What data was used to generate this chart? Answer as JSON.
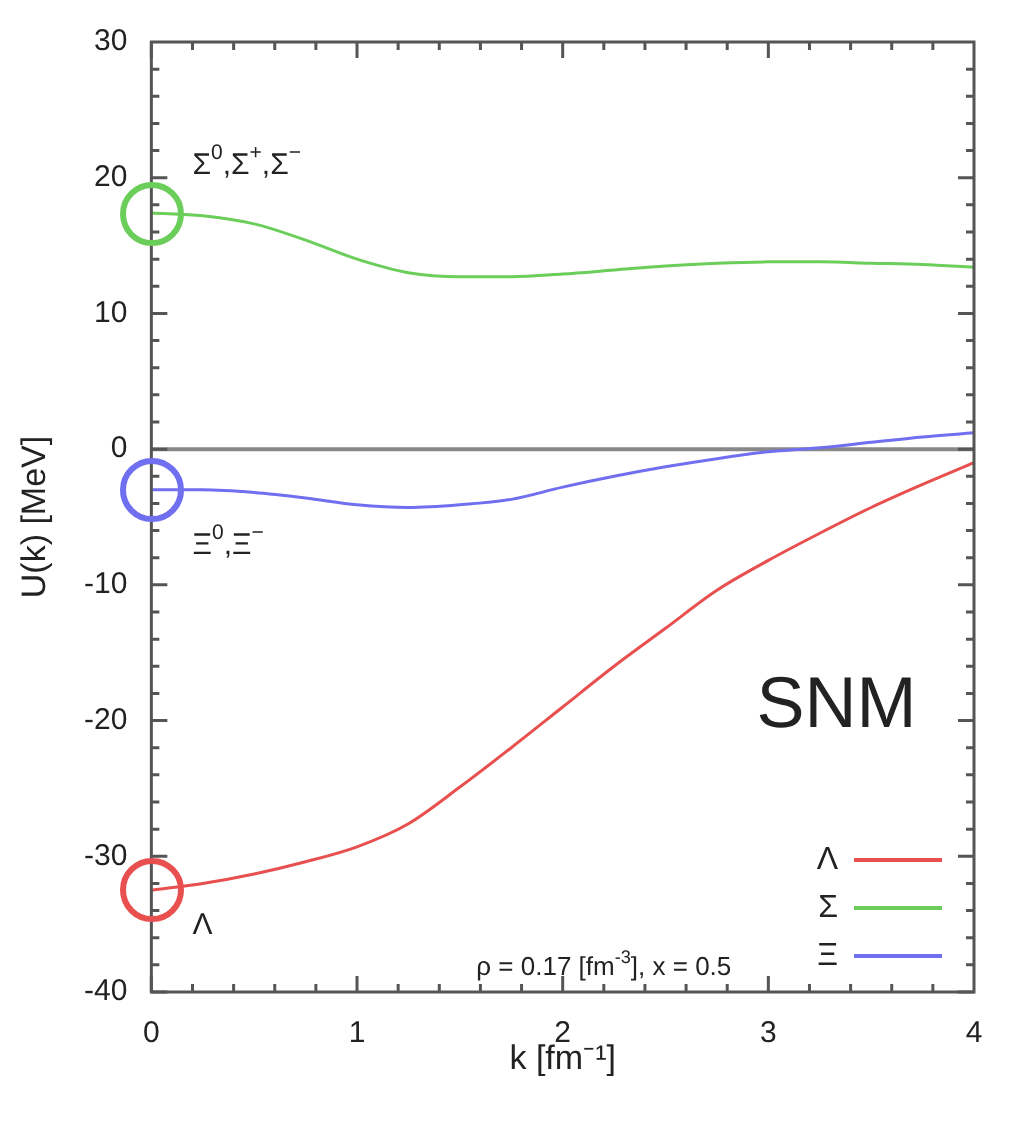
{
  "chart_data": {
    "type": "line",
    "xlabel": "k [fm⁻¹]",
    "ylabel": "U(k) [MeV]",
    "x": [
      0,
      0.25,
      0.5,
      0.75,
      1,
      1.25,
      1.5,
      1.75,
      2,
      2.25,
      2.5,
      2.75,
      3,
      3.25,
      3.5,
      3.75,
      4
    ],
    "series": [
      {
        "name": "Λ",
        "color": "#e8504f",
        "values": [
          -32.5,
          -32,
          -31.3,
          -30.4,
          -29.3,
          -27.6,
          -24.9,
          -22,
          -19,
          -16,
          -13.2,
          -10.4,
          -8.2,
          -6.2,
          -4.3,
          -2.6,
          -1.0
        ]
      },
      {
        "name": "Σ",
        "color": "#6cce5a",
        "values": [
          17.4,
          17.2,
          16.6,
          15.4,
          14.0,
          13.0,
          12.7,
          12.7,
          12.9,
          13.2,
          13.5,
          13.7,
          13.8,
          13.8,
          13.7,
          13.6,
          13.4
        ]
      },
      {
        "name": "Ξ",
        "color": "#6f6ff0",
        "values": [
          -3.0,
          -3.0,
          -3.2,
          -3.6,
          -4.1,
          -4.3,
          -4.1,
          -3.7,
          -2.8,
          -2.0,
          -1.3,
          -0.7,
          -0.2,
          0.1,
          0.5,
          0.9,
          1.2
        ]
      }
    ],
    "xlim": [
      0,
      4
    ],
    "xticks": [
      0,
      1,
      2,
      3,
      4
    ],
    "ylim": [
      -40,
      30
    ],
    "yticks": [
      -40,
      -30,
      -20,
      -10,
      0,
      10,
      20,
      30
    ],
    "ref_lines": [
      {
        "axis": "y",
        "value": 0,
        "color": "#888888"
      }
    ],
    "legend": "bottom right",
    "annotations": [
      "Σ$^{0}$,Σ$^{+}$,Σ$^{−}$",
      "Ξ$^{0}$,Ξ$^{−}$",
      "Λ",
      "SNM",
      "ρ = 0.17 [fm$^{-3}$], x = 0.5"
    ]
  }
}
